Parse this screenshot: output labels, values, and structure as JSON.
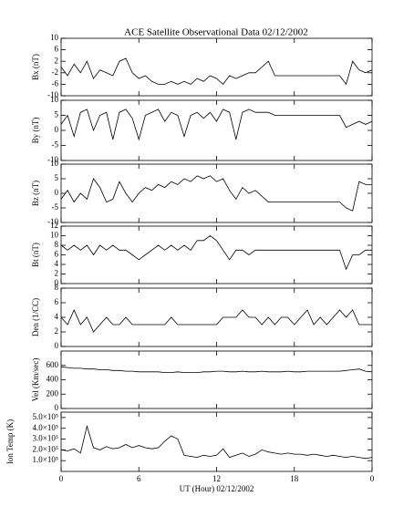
{
  "chart_data": [
    {
      "type": "line",
      "title": "ACE Satellite Observational Data   02/12/2002",
      "ylabel": "Bx (nT)",
      "color": "#000000",
      "x": [
        0,
        0.5,
        1,
        1.5,
        2,
        2.5,
        3,
        3.5,
        4,
        4.5,
        5,
        5.5,
        6,
        6.5,
        7,
        7.5,
        8,
        8.5,
        9,
        9.5,
        10,
        10.5,
        11,
        11.5,
        12,
        12.5,
        13,
        13.5,
        14,
        14.5,
        15,
        15.5,
        16,
        16.5,
        17,
        17.5,
        18,
        18.5,
        19,
        19.5,
        20,
        20.5,
        21,
        21.5,
        22,
        22.5,
        23,
        23.5,
        24
      ],
      "values": [
        0,
        -3,
        1,
        -2,
        2,
        -4,
        -1,
        -2,
        -3,
        2,
        3,
        -2,
        -4,
        -3,
        -5,
        -6,
        -6,
        -5,
        -6,
        -5,
        -6,
        -4,
        -5,
        -3,
        -4,
        -6,
        -3,
        -4,
        -3,
        -2,
        -2,
        0,
        2,
        -3,
        -3,
        -3,
        -3,
        -3,
        -3,
        -3,
        -3,
        -3,
        -3,
        -3,
        -6,
        2,
        -1,
        -2,
        -1
      ],
      "xlim": [
        0,
        24
      ],
      "xticks": [
        0,
        6,
        12,
        18,
        24
      ],
      "ylim": [
        -10,
        10
      ],
      "yticks": [
        -10,
        -6,
        -2,
        2,
        6,
        10
      ]
    },
    {
      "type": "line",
      "ylabel": "By (nT)",
      "color": "#000000",
      "x": [
        0,
        0.5,
        1,
        1.5,
        2,
        2.5,
        3,
        3.5,
        4,
        4.5,
        5,
        5.5,
        6,
        6.5,
        7,
        7.5,
        8,
        8.5,
        9,
        9.5,
        10,
        10.5,
        11,
        11.5,
        12,
        12.5,
        13,
        13.5,
        14,
        14.5,
        15,
        15.5,
        16,
        16.5,
        17,
        17.5,
        18,
        18.5,
        19,
        19.5,
        20,
        20.5,
        21,
        21.5,
        22,
        22.5,
        23,
        23.5,
        24
      ],
      "values": [
        2,
        5,
        -2,
        6,
        7,
        0,
        5,
        6,
        -3,
        6,
        7,
        4,
        -3,
        5,
        6,
        7,
        3,
        6,
        5,
        -2,
        5,
        6,
        4,
        6,
        3,
        7,
        6,
        -3,
        6,
        7,
        6,
        6,
        6,
        5,
        5,
        5,
        5,
        5,
        5,
        5,
        5,
        5,
        5,
        5,
        1,
        2,
        3,
        2,
        3
      ],
      "xlim": [
        0,
        24
      ],
      "xticks": [
        0,
        6,
        12,
        18,
        24
      ],
      "ylim": [
        -10,
        10
      ],
      "yticks": [
        -10,
        -5,
        0,
        5,
        10
      ]
    },
    {
      "type": "line",
      "ylabel": "Bz (nT)",
      "color": "#000000",
      "x": [
        0,
        0.5,
        1,
        1.5,
        2,
        2.5,
        3,
        3.5,
        4,
        4.5,
        5,
        5.5,
        6,
        6.5,
        7,
        7.5,
        8,
        8.5,
        9,
        9.5,
        10,
        10.5,
        11,
        11.5,
        12,
        12.5,
        13,
        13.5,
        14,
        14.5,
        15,
        15.5,
        16,
        16.5,
        17,
        17.5,
        18,
        18.5,
        19,
        19.5,
        20,
        20.5,
        21,
        21.5,
        22,
        22.5,
        23,
        23.5,
        24
      ],
      "values": [
        -2,
        1,
        -3,
        0,
        -2,
        5,
        2,
        -3,
        -2,
        4,
        0,
        -3,
        0,
        2,
        1,
        3,
        2,
        4,
        3,
        5,
        4,
        6,
        5,
        6,
        4,
        5,
        1,
        -2,
        2,
        0,
        1,
        -1,
        -3,
        -3,
        -3,
        -3,
        -3,
        -3,
        -3,
        -3,
        -3,
        -3,
        -3,
        -3,
        -5,
        -6,
        4,
        3,
        3
      ],
      "xlim": [
        0,
        24
      ],
      "xticks": [
        0,
        6,
        12,
        18,
        24
      ],
      "ylim": [
        -10,
        10
      ],
      "yticks": [
        -10,
        -5,
        0,
        5,
        10
      ]
    },
    {
      "type": "line",
      "ylabel": "Bt (nT)",
      "color": "#000000",
      "x": [
        0,
        0.5,
        1,
        1.5,
        2,
        2.5,
        3,
        3.5,
        4,
        4.5,
        5,
        5.5,
        6,
        6.5,
        7,
        7.5,
        8,
        8.5,
        9,
        9.5,
        10,
        10.5,
        11,
        11.5,
        12,
        12.5,
        13,
        13.5,
        14,
        14.5,
        15,
        15.5,
        16,
        16.5,
        17,
        17.5,
        18,
        18.5,
        19,
        19.5,
        20,
        20.5,
        21,
        21.5,
        22,
        22.5,
        23,
        23.5,
        24
      ],
      "values": [
        8,
        7,
        8,
        7,
        8,
        6,
        8,
        7,
        8,
        7,
        7,
        6,
        5,
        6,
        7,
        8,
        7,
        8,
        7,
        8,
        7,
        9,
        9,
        10,
        9,
        7,
        5,
        7,
        7,
        6,
        7,
        7,
        7,
        7,
        7,
        7,
        7,
        7,
        7,
        7,
        7,
        7,
        7,
        7,
        3,
        6,
        6,
        7,
        7
      ],
      "xlim": [
        0,
        24
      ],
      "xticks": [
        0,
        6,
        12,
        18,
        24
      ],
      "ylim": [
        0,
        12
      ],
      "yticks": [
        0,
        2,
        4,
        6,
        8,
        10,
        12
      ]
    },
    {
      "type": "line",
      "ylabel": "Den (1/CC)",
      "color": "#000000",
      "x": [
        0,
        0.5,
        1,
        1.5,
        2,
        2.5,
        3,
        3.5,
        4,
        4.5,
        5,
        5.5,
        6,
        6.5,
        7,
        7.5,
        8,
        8.5,
        9,
        9.5,
        10,
        10.5,
        11,
        11.5,
        12,
        12.5,
        13,
        13.5,
        14,
        14.5,
        15,
        15.5,
        16,
        16.5,
        17,
        17.5,
        18,
        18.5,
        19,
        19.5,
        20,
        20.5,
        21,
        21.5,
        22,
        22.5,
        23,
        23.5,
        24
      ],
      "values": [
        4,
        3,
        5,
        3,
        4,
        2,
        3,
        4,
        3,
        3,
        4,
        3,
        3,
        3,
        3,
        3,
        3,
        4,
        3,
        3,
        3,
        3,
        3,
        3,
        3,
        4,
        4,
        4,
        5,
        4,
        4,
        3,
        4,
        3,
        4,
        4,
        3,
        4,
        5,
        3,
        4,
        3,
        4,
        5,
        4,
        5,
        3,
        3,
        3
      ],
      "xlim": [
        0,
        24
      ],
      "xticks": [
        0,
        6,
        12,
        18,
        24
      ],
      "ylim": [
        0,
        8
      ],
      "yticks": [
        0,
        2,
        4,
        6,
        8
      ]
    },
    {
      "type": "line",
      "ylabel": "Vel (Km/sec)",
      "color": "#000000",
      "x": [
        0,
        0.5,
        1,
        1.5,
        2,
        2.5,
        3,
        3.5,
        4,
        4.5,
        5,
        5.5,
        6,
        6.5,
        7,
        7.5,
        8,
        8.5,
        9,
        9.5,
        10,
        10.5,
        11,
        11.5,
        12,
        12.5,
        13,
        13.5,
        14,
        14.5,
        15,
        15.5,
        16,
        16.5,
        17,
        17.5,
        18,
        18.5,
        19,
        19.5,
        20,
        20.5,
        21,
        21.5,
        22,
        22.5,
        23,
        23.5,
        24
      ],
      "values": [
        580,
        570,
        560,
        560,
        550,
        550,
        540,
        540,
        530,
        530,
        520,
        520,
        510,
        510,
        510,
        510,
        500,
        500,
        510,
        500,
        500,
        500,
        510,
        510,
        520,
        520,
        510,
        510,
        520,
        510,
        510,
        520,
        510,
        510,
        510,
        520,
        510,
        510,
        520,
        520,
        520,
        520,
        520,
        520,
        530,
        540,
        550,
        520,
        510
      ],
      "xlim": [
        0,
        24
      ],
      "xticks": [
        0,
        6,
        12,
        18,
        24
      ],
      "ylim": [
        0,
        800
      ],
      "yticks": [
        0,
        200,
        400,
        600
      ]
    },
    {
      "type": "line",
      "ylabel": "Ion Temp (K)",
      "xlabel": "UT (Hour)  02/12/2002",
      "color": "#000000",
      "x": [
        0,
        0.5,
        1,
        1.5,
        2,
        2.5,
        3,
        3.5,
        4,
        4.5,
        5,
        5.5,
        6,
        6.5,
        7,
        7.5,
        8,
        8.5,
        9,
        9.5,
        10,
        10.5,
        11,
        11.5,
        12,
        12.5,
        13,
        13.5,
        14,
        14.5,
        15,
        15.5,
        16,
        16.5,
        17,
        17.5,
        18,
        18.5,
        19,
        19.5,
        20,
        20.5,
        21,
        21.5,
        22,
        22.5,
        23,
        23.5,
        24
      ],
      "values": [
        200000,
        190000,
        210000,
        170000,
        420000,
        220000,
        200000,
        230000,
        210000,
        220000,
        250000,
        220000,
        240000,
        220000,
        210000,
        220000,
        280000,
        330000,
        300000,
        150000,
        140000,
        130000,
        150000,
        140000,
        150000,
        210000,
        130000,
        150000,
        170000,
        140000,
        160000,
        200000,
        180000,
        170000,
        160000,
        170000,
        160000,
        160000,
        150000,
        160000,
        150000,
        140000,
        150000,
        140000,
        130000,
        140000,
        130000,
        120000,
        130000
      ],
      "xlim": [
        0,
        24
      ],
      "xticks": [
        0,
        6,
        12,
        18,
        {
          "value": 24,
          "label": "0"
        }
      ],
      "ylim": [
        0,
        550000
      ],
      "yticks": [
        {
          "value": 100000,
          "label": "1.0×10⁵"
        },
        {
          "value": 200000,
          "label": "2.0×10⁵"
        },
        {
          "value": 300000,
          "label": "3.0×10⁵"
        },
        {
          "value": 400000,
          "label": "4.0×10⁵"
        },
        {
          "value": 500000,
          "label": "5.0×10⁵"
        }
      ]
    }
  ]
}
